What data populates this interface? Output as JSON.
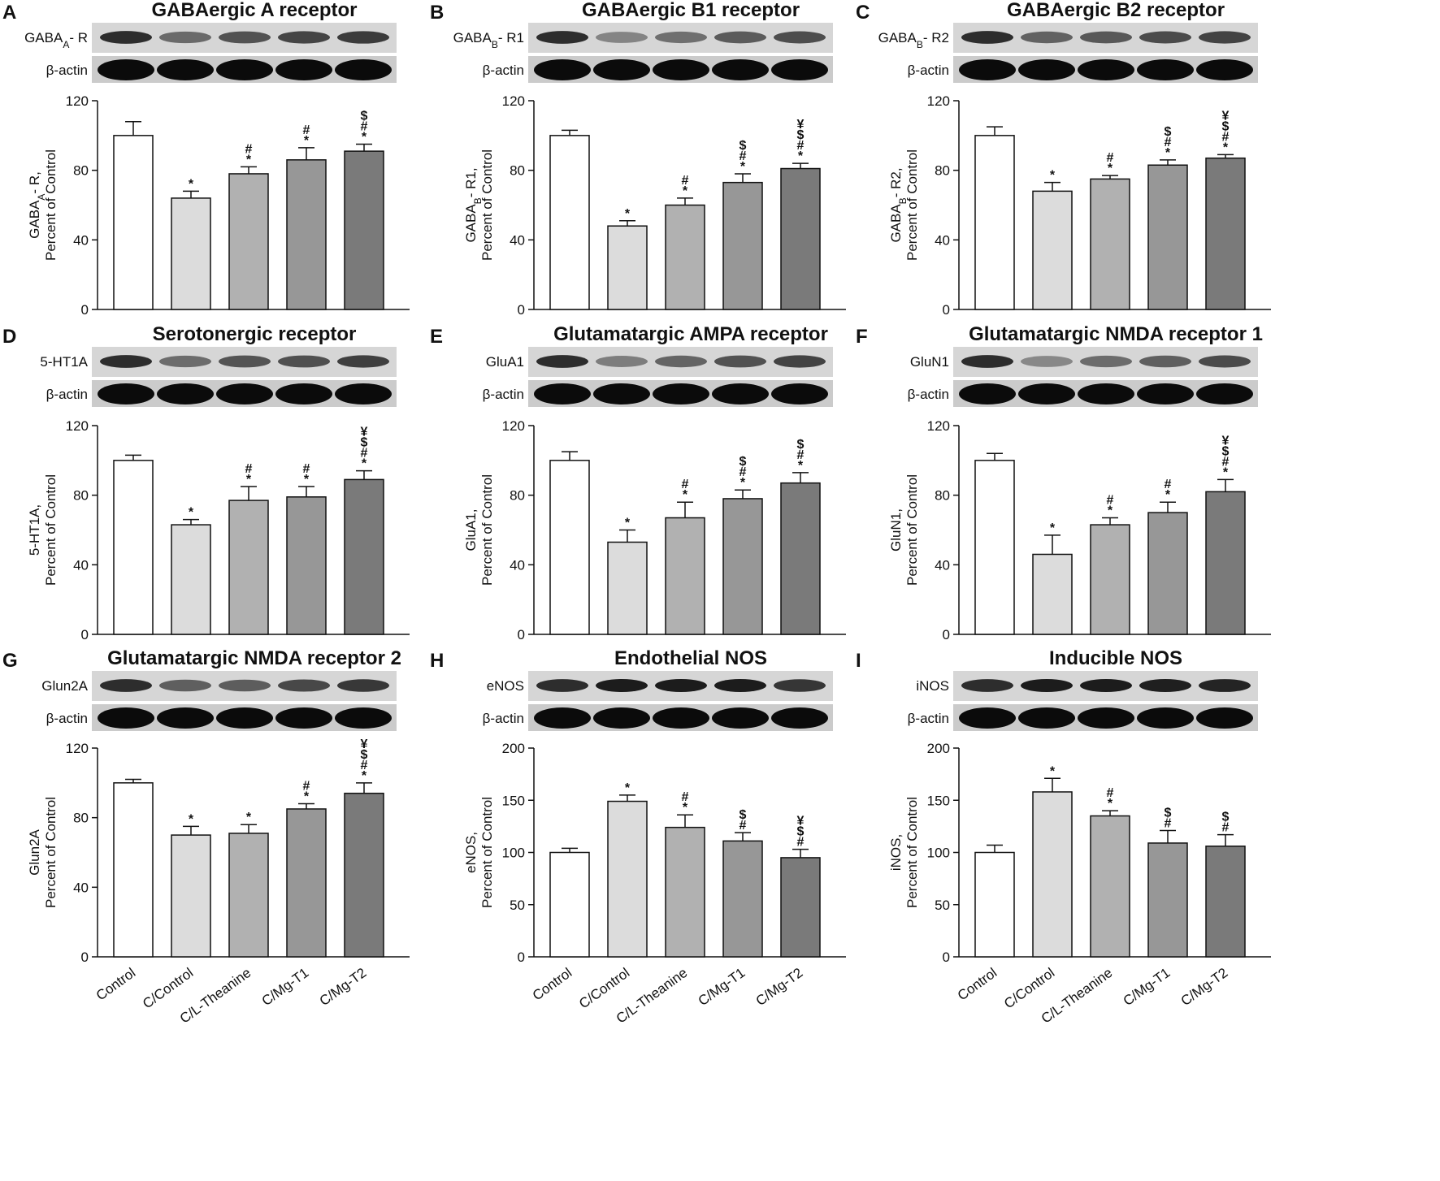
{
  "figure": {
    "categories": [
      "Control",
      "C/Control",
      "C/L-Theanine",
      "C/Mg-T1",
      "C/Mg-T2"
    ],
    "bar_colors": [
      "#ffffff",
      "#dcdcdc",
      "#b1b1b1",
      "#979797",
      "#7a7a7a"
    ],
    "blot_labels": {
      "actin": "β-actin"
    }
  },
  "chart_data": [
    {
      "type": "bar",
      "panel": "A",
      "title": "GABAergic A receptor",
      "blot_label": "GABAA- R",
      "ylabel_line1": "GABAA- R,",
      "ylabel_line2": "Percent of Control",
      "ylim": [
        0,
        120
      ],
      "yticks": [
        "0",
        "40",
        "80",
        "120"
      ],
      "values": [
        100,
        64,
        78,
        86,
        91
      ],
      "errors": [
        8,
        4,
        4,
        7,
        4
      ],
      "sig": [
        [],
        [
          "*"
        ],
        [
          "*",
          "#"
        ],
        [
          "*",
          "#"
        ],
        [
          "*",
          "#",
          "$"
        ]
      ]
    },
    {
      "type": "bar",
      "panel": "B",
      "title": "GABAergic B1 receptor",
      "blot_label": "GABAB- R1",
      "ylabel_line1": "GABAB- R1,",
      "ylabel_line2": "Percent of Control",
      "ylim": [
        0,
        120
      ],
      "yticks": [
        "0",
        "40",
        "80",
        "120"
      ],
      "values": [
        100,
        48,
        60,
        73,
        81
      ],
      "errors": [
        3,
        3,
        4,
        5,
        3
      ],
      "sig": [
        [],
        [
          "*"
        ],
        [
          "*",
          "#"
        ],
        [
          "*",
          "#",
          "$"
        ],
        [
          "*",
          "#",
          "$",
          "¥"
        ]
      ]
    },
    {
      "type": "bar",
      "panel": "C",
      "title": "GABAergic B2 receptor",
      "blot_label": "GABAB- R2",
      "ylabel_line1": "GABAB- R2,",
      "ylabel_line2": "Percent of Control",
      "ylim": [
        0,
        120
      ],
      "yticks": [
        "0",
        "40",
        "80",
        "120"
      ],
      "values": [
        100,
        68,
        75,
        83,
        87
      ],
      "errors": [
        5,
        5,
        2,
        3,
        2
      ],
      "sig": [
        [],
        [
          "*"
        ],
        [
          "*",
          "#"
        ],
        [
          "*",
          "#",
          "$"
        ],
        [
          "*",
          "#",
          "$",
          "¥"
        ]
      ]
    },
    {
      "type": "bar",
      "panel": "D",
      "title": "Serotonergic receptor",
      "blot_label": "5-HT1A",
      "ylabel_line1": "5-HT1A,",
      "ylabel_line2": "Percent of Control",
      "ylim": [
        0,
        120
      ],
      "yticks": [
        "0",
        "40",
        "80",
        "120"
      ],
      "values": [
        100,
        63,
        77,
        79,
        89
      ],
      "errors": [
        3,
        3,
        8,
        6,
        5
      ],
      "sig": [
        [],
        [
          "*"
        ],
        [
          "*",
          "#"
        ],
        [
          "*",
          "#"
        ],
        [
          "*",
          "#",
          "$",
          "¥"
        ]
      ]
    },
    {
      "type": "bar",
      "panel": "E",
      "title": "Glutamatargic AMPA receptor",
      "blot_label": "GluA1",
      "ylabel_line1": "GluA1,",
      "ylabel_line2": "Percent of Control",
      "ylim": [
        0,
        120
      ],
      "yticks": [
        "0",
        "40",
        "80",
        "120"
      ],
      "values": [
        100,
        53,
        67,
        78,
        87
      ],
      "errors": [
        5,
        7,
        9,
        5,
        6
      ],
      "sig": [
        [],
        [
          "*"
        ],
        [
          "*",
          "#"
        ],
        [
          "*",
          "#",
          "$"
        ],
        [
          "*",
          "#",
          "$"
        ]
      ]
    },
    {
      "type": "bar",
      "panel": "F",
      "title": "Glutamatargic NMDA receptor 1",
      "blot_label": "GluN1",
      "ylabel_line1": "GluN1,",
      "ylabel_line2": "Percent of Control",
      "ylim": [
        0,
        120
      ],
      "yticks": [
        "0",
        "40",
        "80",
        "120"
      ],
      "values": [
        100,
        46,
        63,
        70,
        82
      ],
      "errors": [
        4,
        11,
        4,
        6,
        7
      ],
      "sig": [
        [],
        [
          "*"
        ],
        [
          "*",
          "#"
        ],
        [
          "*",
          "#"
        ],
        [
          "*",
          "#",
          "$",
          "¥"
        ]
      ]
    },
    {
      "type": "bar",
      "panel": "G",
      "title": "Glutamatargic NMDA receptor 2",
      "blot_label": "Glun2A",
      "ylabel_line1": "Glun2A",
      "ylabel_line2": "Percent of Control",
      "ylim": [
        0,
        120
      ],
      "yticks": [
        "0",
        "40",
        "80",
        "120"
      ],
      "values": [
        100,
        70,
        71,
        85,
        94
      ],
      "errors": [
        2,
        5,
        5,
        3,
        6
      ],
      "sig": [
        [],
        [
          "*"
        ],
        [
          "*"
        ],
        [
          "*",
          "#"
        ],
        [
          "*",
          "#",
          "$",
          "¥"
        ]
      ]
    },
    {
      "type": "bar",
      "panel": "H",
      "title": "Endothelial NOS",
      "blot_label": "eNOS",
      "ylabel_line1": "eNOS,",
      "ylabel_line2": "Percent of Control",
      "ylim": [
        0,
        200
      ],
      "yticks": [
        "0",
        "50",
        "100",
        "150",
        "200"
      ],
      "values": [
        100,
        149,
        124,
        111,
        95
      ],
      "errors": [
        4,
        6,
        12,
        8,
        8
      ],
      "sig": [
        [],
        [
          "*"
        ],
        [
          "*",
          "#"
        ],
        [
          "#",
          "$"
        ],
        [
          "#",
          "$",
          "¥"
        ]
      ]
    },
    {
      "type": "bar",
      "panel": "I",
      "title": "Inducible NOS",
      "blot_label": "iNOS",
      "ylabel_line1": "iNOS,",
      "ylabel_line2": "Percent of Control",
      "ylim": [
        0,
        200
      ],
      "yticks": [
        "0",
        "50",
        "100",
        "150",
        "200"
      ],
      "values": [
        100,
        158,
        135,
        109,
        106
      ],
      "errors": [
        7,
        13,
        5,
        12,
        11
      ],
      "sig": [
        [],
        [
          "*"
        ],
        [
          "*",
          "#"
        ],
        [
          "#",
          "$"
        ],
        [
          "#",
          "$"
        ]
      ]
    }
  ]
}
